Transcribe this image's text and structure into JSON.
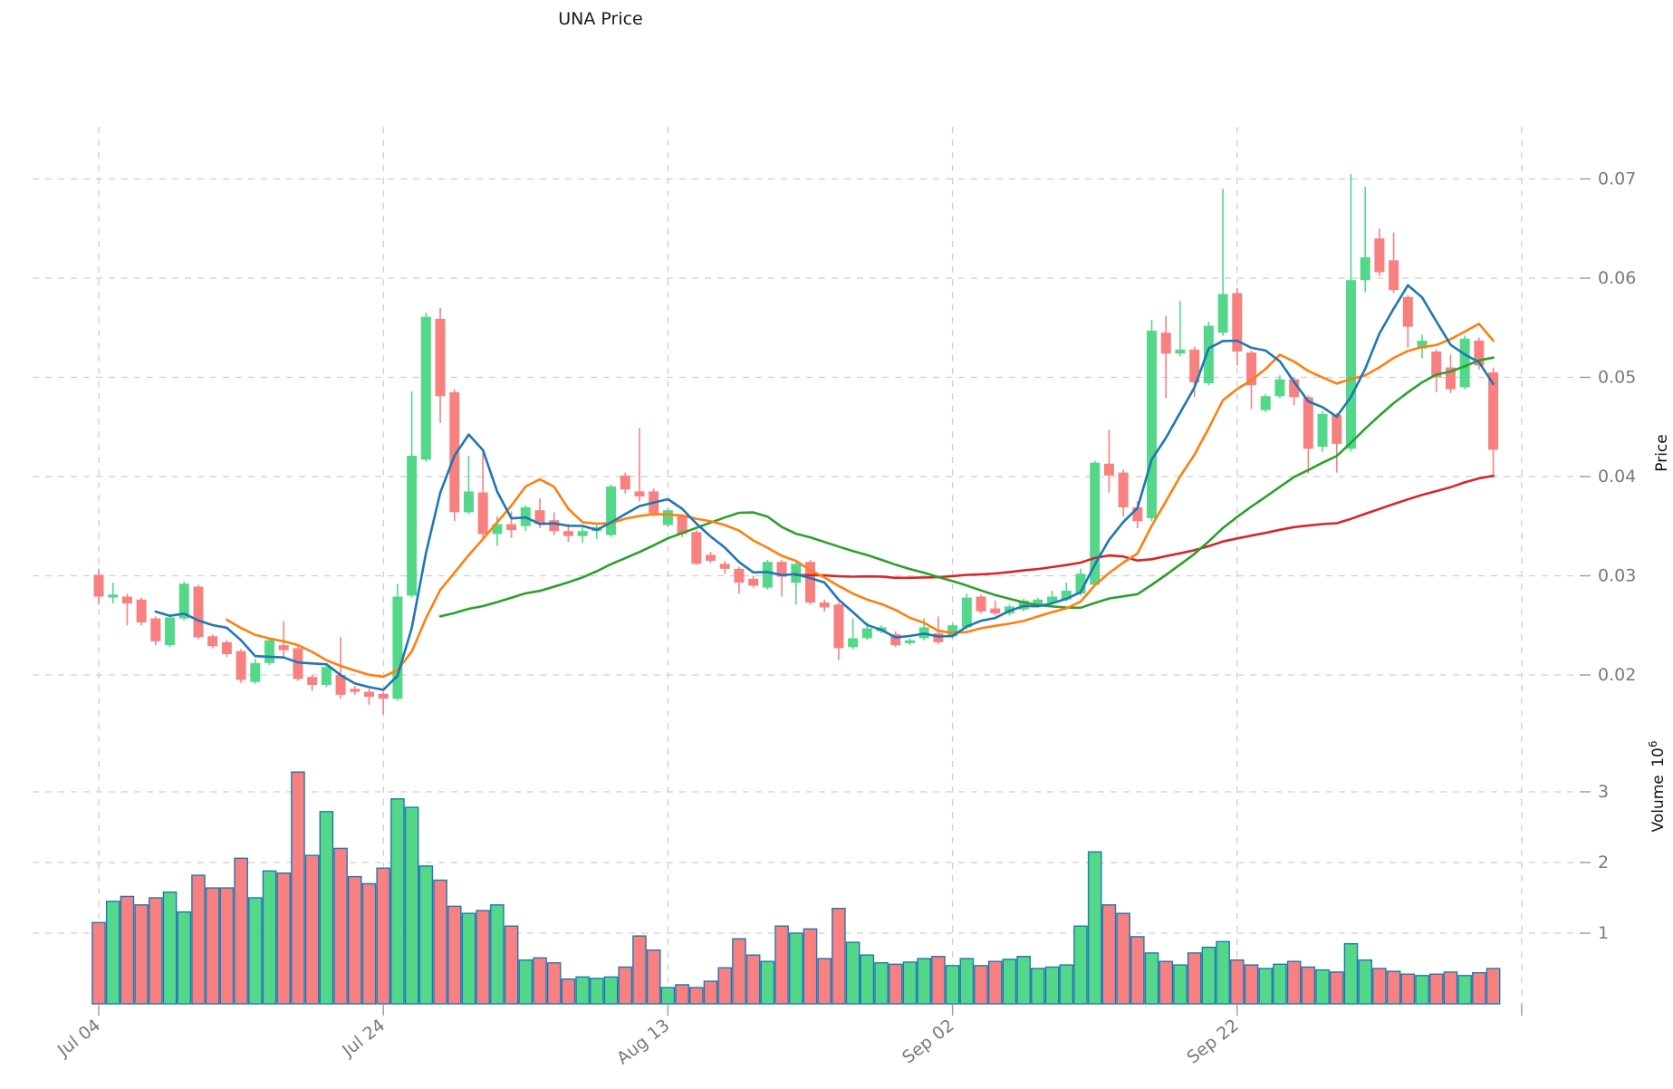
{
  "title": "UNA Price",
  "axes": {
    "price_label": "Price",
    "volume_label": "Volume",
    "volume_scale_base": "10",
    "volume_scale_exponent": "6",
    "price_ticks": [
      "0.07",
      "0.06",
      "0.05",
      "0.04",
      "0.03",
      "0.02"
    ],
    "price_tick_values": [
      0.07,
      0.06,
      0.05,
      0.04,
      0.03,
      0.02
    ],
    "volume_ticks": [
      "3",
      "2",
      "1"
    ],
    "volume_tick_values": [
      3,
      2,
      1
    ],
    "x_ticks": [
      {
        "label": "Jul 04",
        "day": 0
      },
      {
        "label": "Jul 24",
        "day": 20
      },
      {
        "label": "Aug 13",
        "day": 40
      },
      {
        "label": "Sep 02",
        "day": 60
      },
      {
        "label": "Sep 22",
        "day": 80
      },
      {
        "label": "",
        "day": 100
      }
    ]
  },
  "chart_data": {
    "type": "candlestick+volume",
    "title": "UNA Price",
    "x_unit": "days since Jul 04",
    "ylabel_price": "Price",
    "ylabel_volume": "Volume 10^6",
    "price_range": [
      0.015,
      0.0755
    ],
    "volume_range_millions": [
      0,
      3.6
    ],
    "grid": "dashed",
    "colors": {
      "up": "#53d88a",
      "down": "#f98080",
      "volume_edge": "#1f77b4",
      "sma5": "#1f77b4",
      "sma10": "#ff7f0e",
      "sma25": "#2ca02c",
      "sma50": "#d62728",
      "gridline": "#cfcfcf",
      "tick_text": "#7a7a7a",
      "title_text": "#1a1a1a"
    },
    "moving_averages": [
      {
        "name": "SMA5",
        "window": 5,
        "color": "#1f77b4"
      },
      {
        "name": "SMA10",
        "window": 10,
        "color": "#ff7f0e"
      },
      {
        "name": "SMA25",
        "window": 25,
        "color": "#2ca02c"
      },
      {
        "name": "SMA50",
        "window": 50,
        "color": "#d62728"
      }
    ],
    "candles_ohlc": [
      [
        0.0301,
        0.0307,
        0.0271,
        0.0279
      ],
      [
        0.0278,
        0.0293,
        0.0272,
        0.0281
      ],
      [
        0.0279,
        0.0282,
        0.025,
        0.0272
      ],
      [
        0.0276,
        0.0278,
        0.025,
        0.0253
      ],
      [
        0.0257,
        0.0259,
        0.023,
        0.0234
      ],
      [
        0.023,
        0.0261,
        0.0228,
        0.0258
      ],
      [
        0.0257,
        0.0294,
        0.0255,
        0.0292
      ],
      [
        0.0289,
        0.0291,
        0.0236,
        0.0238
      ],
      [
        0.0239,
        0.0241,
        0.0227,
        0.0229
      ],
      [
        0.0233,
        0.0235,
        0.0218,
        0.0221
      ],
      [
        0.0224,
        0.0226,
        0.0192,
        0.0195
      ],
      [
        0.0193,
        0.0216,
        0.0191,
        0.0212
      ],
      [
        0.0212,
        0.0237,
        0.021,
        0.0235
      ],
      [
        0.023,
        0.0254,
        0.0218,
        0.0225
      ],
      [
        0.0227,
        0.0229,
        0.0194,
        0.0196
      ],
      [
        0.0198,
        0.02,
        0.0184,
        0.019
      ],
      [
        0.019,
        0.0211,
        0.0188,
        0.0208
      ],
      [
        0.02,
        0.0238,
        0.0176,
        0.018
      ],
      [
        0.0186,
        0.0189,
        0.018,
        0.0183
      ],
      [
        0.0183,
        0.0186,
        0.017,
        0.0178
      ],
      [
        0.0181,
        0.0183,
        0.016,
        0.0176
      ],
      [
        0.0176,
        0.0292,
        0.0174,
        0.0279
      ],
      [
        0.028,
        0.0486,
        0.0278,
        0.0421
      ],
      [
        0.0417,
        0.0565,
        0.0415,
        0.0561
      ],
      [
        0.0559,
        0.057,
        0.0454,
        0.0481
      ],
      [
        0.0485,
        0.0488,
        0.0355,
        0.0364
      ],
      [
        0.0364,
        0.0421,
        0.0362,
        0.0385
      ],
      [
        0.0384,
        0.0424,
        0.0338,
        0.0342
      ],
      [
        0.0342,
        0.036,
        0.033,
        0.0352
      ],
      [
        0.0352,
        0.0365,
        0.0338,
        0.0346
      ],
      [
        0.035,
        0.0371,
        0.0345,
        0.0369
      ],
      [
        0.0366,
        0.0378,
        0.0348,
        0.0352
      ],
      [
        0.0356,
        0.0364,
        0.0341,
        0.0345
      ],
      [
        0.0345,
        0.0352,
        0.0334,
        0.034
      ],
      [
        0.034,
        0.0349,
        0.0333,
        0.0345
      ],
      [
        0.0345,
        0.0351,
        0.0337,
        0.0349
      ],
      [
        0.0341,
        0.0392,
        0.0339,
        0.039
      ],
      [
        0.0401,
        0.0404,
        0.0383,
        0.0387
      ],
      [
        0.0385,
        0.0449,
        0.0375,
        0.038
      ],
      [
        0.0385,
        0.0388,
        0.036,
        0.0363
      ],
      [
        0.0351,
        0.0368,
        0.0349,
        0.0366
      ],
      [
        0.036,
        0.0362,
        0.0339,
        0.0342
      ],
      [
        0.0344,
        0.0346,
        0.0311,
        0.0312
      ],
      [
        0.0321,
        0.0324,
        0.0313,
        0.0315
      ],
      [
        0.0312,
        0.0315,
        0.0302,
        0.0307
      ],
      [
        0.0307,
        0.0309,
        0.0282,
        0.0293
      ],
      [
        0.0297,
        0.03,
        0.0288,
        0.029
      ],
      [
        0.0288,
        0.0316,
        0.0286,
        0.0314
      ],
      [
        0.0314,
        0.0316,
        0.0279,
        0.0299
      ],
      [
        0.0293,
        0.0315,
        0.0271,
        0.0312
      ],
      [
        0.0314,
        0.0316,
        0.0271,
        0.0273
      ],
      [
        0.0273,
        0.0276,
        0.0264,
        0.0268
      ],
      [
        0.0271,
        0.0273,
        0.0215,
        0.0227
      ],
      [
        0.0228,
        0.0257,
        0.0226,
        0.0237
      ],
      [
        0.0237,
        0.0253,
        0.0235,
        0.0247
      ],
      [
        0.0244,
        0.025,
        0.0242,
        0.0248
      ],
      [
        0.0241,
        0.0244,
        0.0228,
        0.023
      ],
      [
        0.0232,
        0.0237,
        0.023,
        0.0235
      ],
      [
        0.0237,
        0.0257,
        0.0235,
        0.0248
      ],
      [
        0.0242,
        0.0259,
        0.0231,
        0.0233
      ],
      [
        0.0239,
        0.0252,
        0.0237,
        0.025
      ],
      [
        0.0248,
        0.0282,
        0.0246,
        0.0278
      ],
      [
        0.0279,
        0.0281,
        0.0262,
        0.0264
      ],
      [
        0.0267,
        0.0275,
        0.026,
        0.0262
      ],
      [
        0.0262,
        0.0271,
        0.026,
        0.0269
      ],
      [
        0.0266,
        0.0277,
        0.0264,
        0.0275
      ],
      [
        0.0271,
        0.0278,
        0.0269,
        0.0276
      ],
      [
        0.0273,
        0.0285,
        0.0271,
        0.0279
      ],
      [
        0.0276,
        0.0293,
        0.0274,
        0.0285
      ],
      [
        0.0282,
        0.0307,
        0.028,
        0.0302
      ],
      [
        0.0291,
        0.0416,
        0.0289,
        0.0414
      ],
      [
        0.0413,
        0.0447,
        0.0384,
        0.0401
      ],
      [
        0.0404,
        0.0407,
        0.036,
        0.0369
      ],
      [
        0.0369,
        0.0375,
        0.0348,
        0.0355
      ],
      [
        0.0358,
        0.0558,
        0.0355,
        0.0547
      ],
      [
        0.0545,
        0.0562,
        0.0479,
        0.0524
      ],
      [
        0.0524,
        0.0577,
        0.0521,
        0.0528
      ],
      [
        0.0528,
        0.0531,
        0.048,
        0.0495
      ],
      [
        0.0494,
        0.0556,
        0.0492,
        0.0552
      ],
      [
        0.0545,
        0.069,
        0.0542,
        0.0584
      ],
      [
        0.0585,
        0.059,
        0.0512,
        0.0526
      ],
      [
        0.0525,
        0.0527,
        0.0468,
        0.0492
      ],
      [
        0.0467,
        0.0483,
        0.0465,
        0.0481
      ],
      [
        0.0481,
        0.0502,
        0.0479,
        0.0498
      ],
      [
        0.0498,
        0.05,
        0.0472,
        0.048
      ],
      [
        0.048,
        0.0482,
        0.0403,
        0.0428
      ],
      [
        0.043,
        0.0466,
        0.0425,
        0.0463
      ],
      [
        0.0462,
        0.0464,
        0.0404,
        0.0433
      ],
      [
        0.0428,
        0.0705,
        0.0425,
        0.0598
      ],
      [
        0.0598,
        0.0692,
        0.0586,
        0.0621
      ],
      [
        0.064,
        0.065,
        0.0602,
        0.0606
      ],
      [
        0.0618,
        0.0646,
        0.0585,
        0.0588
      ],
      [
        0.0581,
        0.0583,
        0.053,
        0.0551
      ],
      [
        0.0529,
        0.0543,
        0.0519,
        0.0537
      ],
      [
        0.0526,
        0.0528,
        0.0485,
        0.05
      ],
      [
        0.051,
        0.0523,
        0.0484,
        0.0488
      ],
      [
        0.049,
        0.0542,
        0.0488,
        0.0539
      ],
      [
        0.0537,
        0.054,
        0.0508,
        0.0512
      ],
      [
        0.0505,
        0.051,
        0.0399,
        0.0427
      ]
    ],
    "volumes_millions": [
      1.15,
      1.45,
      1.52,
      1.4,
      1.5,
      1.58,
      1.3,
      1.82,
      1.64,
      1.64,
      2.06,
      1.5,
      1.88,
      1.85,
      3.28,
      2.1,
      2.72,
      2.2,
      1.8,
      1.7,
      1.92,
      2.9,
      2.78,
      1.95,
      1.75,
      1.38,
      1.28,
      1.32,
      1.4,
      1.1,
      0.62,
      0.65,
      0.58,
      0.35,
      0.38,
      0.36,
      0.38,
      0.52,
      0.96,
      0.76,
      0.23,
      0.27,
      0.23,
      0.32,
      0.51,
      0.92,
      0.69,
      0.6,
      1.1,
      1.0,
      1.06,
      0.64,
      1.35,
      0.87,
      0.69,
      0.58,
      0.56,
      0.59,
      0.64,
      0.67,
      0.54,
      0.64,
      0.54,
      0.6,
      0.63,
      0.67,
      0.5,
      0.52,
      0.55,
      1.1,
      2.15,
      1.4,
      1.28,
      0.95,
      0.72,
      0.6,
      0.55,
      0.72,
      0.8,
      0.88,
      0.62,
      0.55,
      0.5,
      0.56,
      0.6,
      0.52,
      0.48,
      0.45,
      0.85,
      0.62,
      0.5,
      0.46,
      0.42,
      0.4,
      0.42,
      0.45,
      0.4,
      0.44,
      0.5
    ]
  }
}
